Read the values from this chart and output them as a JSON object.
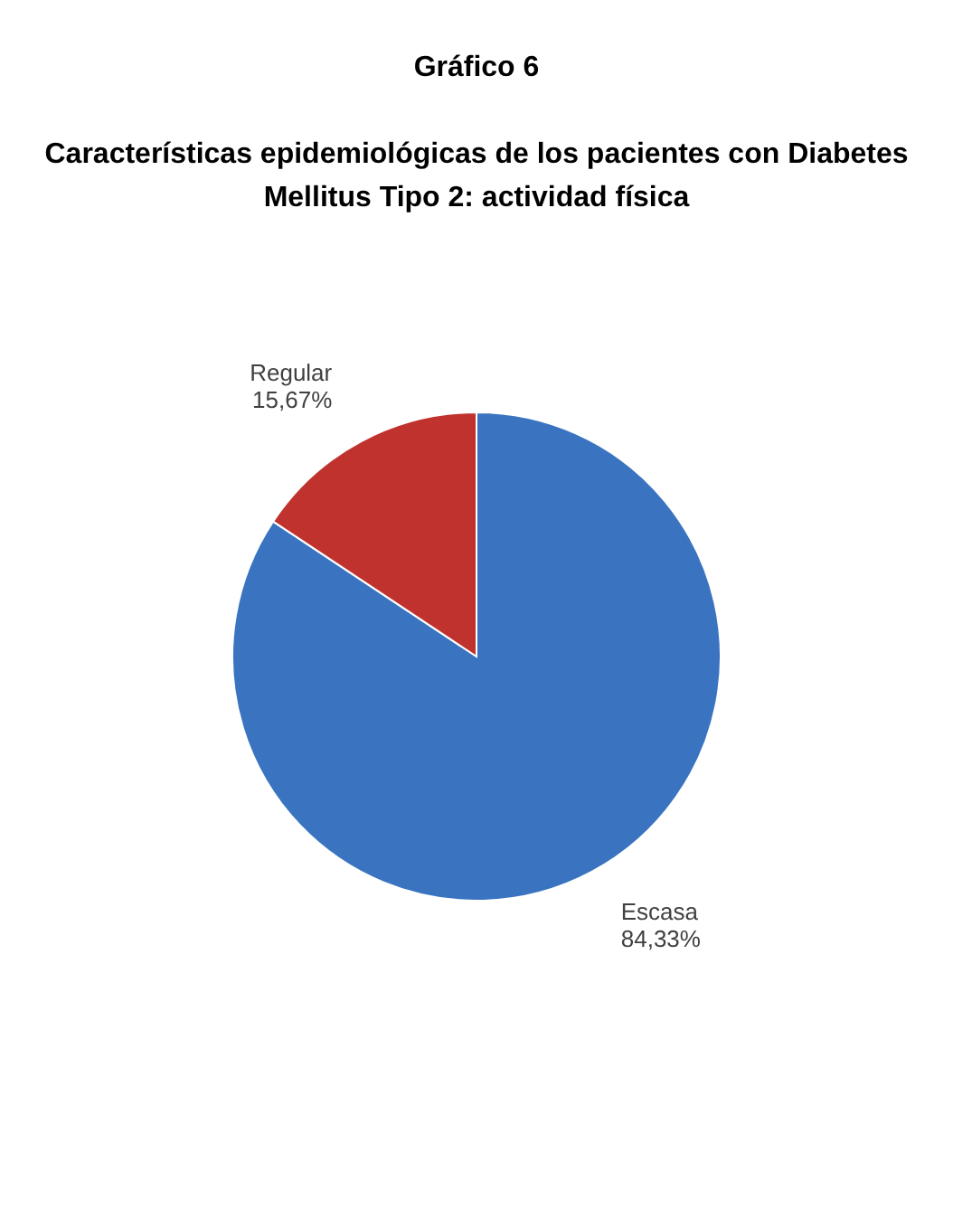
{
  "chart_data": {
    "type": "pie",
    "title": "Gráfico 6",
    "subtitle": "Características epidemiológicas de los pacientes con Diabetes Mellitus Tipo 2: actividad física",
    "categories": [
      "Escasa",
      "Regular"
    ],
    "values": [
      84.33,
      15.67
    ],
    "colors": [
      "#3a74c0",
      "#c0322e"
    ],
    "value_labels": [
      "84,33%",
      "15,67%"
    ]
  }
}
